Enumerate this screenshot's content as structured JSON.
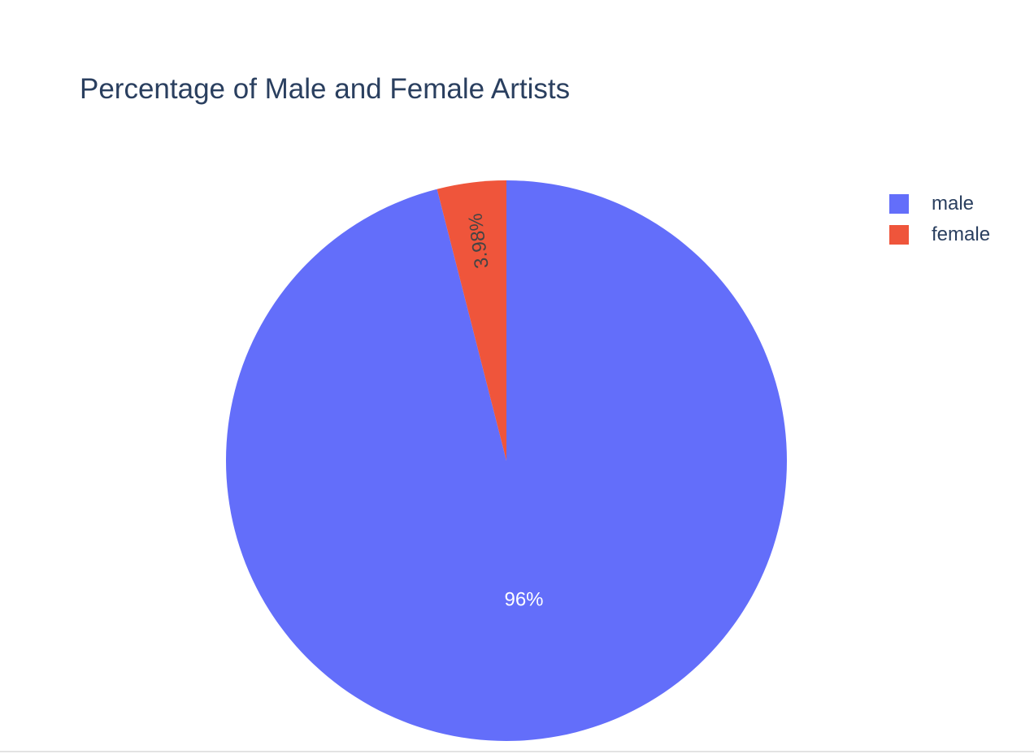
{
  "chart_data": {
    "type": "pie",
    "title": "Percentage of Male and Female Artists",
    "labels": [
      "male",
      "female"
    ],
    "values": [
      96.02,
      3.98
    ],
    "slice_labels": [
      "96%",
      "3.98%"
    ],
    "colors": [
      "#636efa",
      "#ef553b"
    ],
    "label_colors": [
      "#ffffff",
      "#444444"
    ],
    "direction": "clockwise",
    "start": "12 o'clock",
    "legend": "top-right"
  }
}
